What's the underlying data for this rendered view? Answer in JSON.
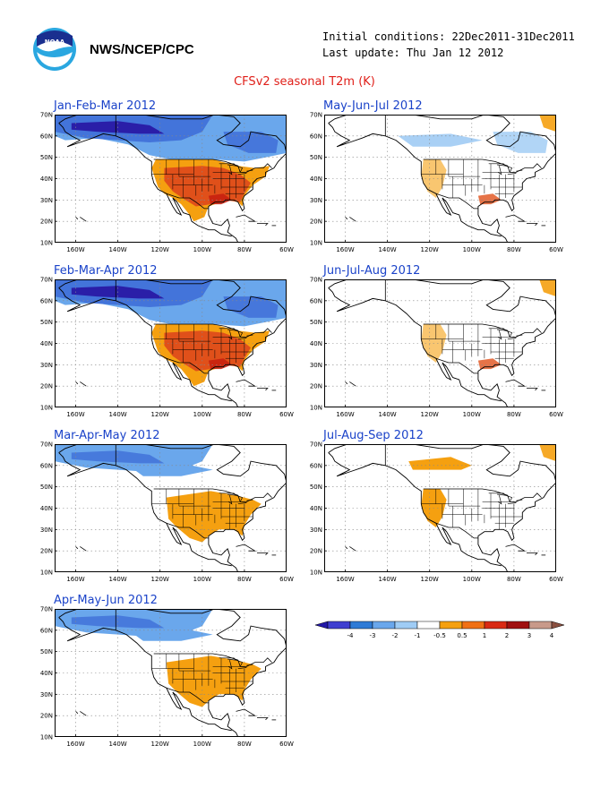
{
  "header": {
    "org": "NWS/NCEP/CPC",
    "initial": "Initial conditions: 22Dec2011-31Dec2011",
    "updated": "Last update: Thu Jan 12 2012",
    "title": "CFSv2 seasonal T2m (K)",
    "logo_text": "NOAA"
  },
  "axes": {
    "lon_labels": [
      "160W",
      "140W",
      "120W",
      "100W",
      "80W",
      "60W"
    ],
    "lat_labels": [
      "70N",
      "60N",
      "50N",
      "40N",
      "30N",
      "20N",
      "10N"
    ]
  },
  "panels": [
    {
      "title": "Jan-Feb-Mar 2012",
      "warm": "strong",
      "cold": "strong"
    },
    {
      "title": "May-Jun-Jul 2012",
      "warm": "weak",
      "cold": "weak"
    },
    {
      "title": "Feb-Mar-Apr 2012",
      "warm": "strong",
      "cold": "strong"
    },
    {
      "title": "Jun-Jul-Aug 2012",
      "warm": "weak",
      "cold": "none"
    },
    {
      "title": "Mar-Apr-May 2012",
      "warm": "moderate",
      "cold": "moderate"
    },
    {
      "title": "Jul-Aug-Sep 2012",
      "warm": "west",
      "cold": "none"
    },
    {
      "title": "Apr-May-Jun 2012",
      "warm": "moderate",
      "cold": "moderate"
    }
  ],
  "colorbar": {
    "labels": [
      "-4",
      "-3",
      "-2",
      "-1",
      "-0.5",
      "0.5",
      "1",
      "2",
      "3",
      "4"
    ],
    "colors": [
      "#2318a8",
      "#3f3fd0",
      "#2f7bd6",
      "#6aa7ec",
      "#9fccf5",
      "#ffffff",
      "#f5a010",
      "#f07014",
      "#d92a14",
      "#a01010",
      "#c89a8a",
      "#8a5040"
    ]
  }
}
